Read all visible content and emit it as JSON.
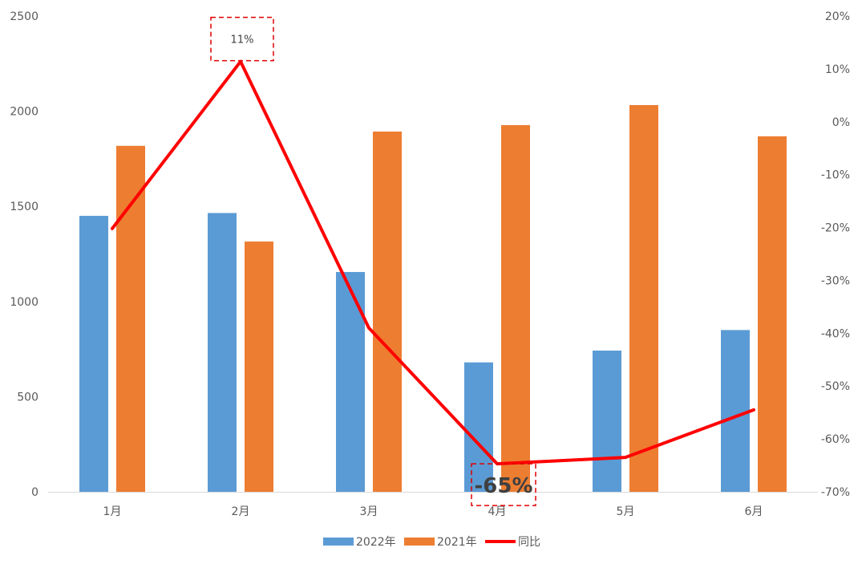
{
  "chart_data": {
    "type": "bar",
    "categories": [
      "1月",
      "2月",
      "3月",
      "4月",
      "5月",
      "6月"
    ],
    "series": [
      {
        "name": "2022年",
        "type": "bar",
        "axis": "left",
        "color": "#5B9BD5",
        "values": [
          1450,
          1465,
          1155,
          680,
          742,
          850
        ]
      },
      {
        "name": "2021年",
        "type": "bar",
        "axis": "left",
        "color": "#ED7D31",
        "values": [
          1818,
          1315,
          1893,
          1927,
          2032,
          1868
        ]
      },
      {
        "name": "同比",
        "type": "line",
        "axis": "right",
        "color": "#FF0000",
        "values": [
          -20.2,
          11.4,
          -39.0,
          -64.7,
          -63.5,
          -54.5
        ]
      }
    ],
    "left_axis": {
      "min": 0,
      "max": 2500,
      "step": 500,
      "tick_labels": [
        "0",
        "500",
        "1000",
        "1500",
        "2000",
        "2500"
      ]
    },
    "right_axis": {
      "min": -70,
      "max": 20,
      "step": 10,
      "tick_labels": [
        "-70%",
        "-60%",
        "-50%",
        "-40%",
        "-30%",
        "-20%",
        "-10%",
        "0%",
        "10%",
        "20%"
      ]
    },
    "annotations": [
      {
        "category": "2月",
        "series": "同比",
        "label": "11%",
        "style": "small"
      },
      {
        "category": "4月",
        "series": "同比",
        "label": "-65%",
        "style": "big"
      }
    ],
    "legend": {
      "position": "bottom",
      "items": [
        {
          "label": "2022年"
        },
        {
          "label": "2021年"
        },
        {
          "label": "同比"
        }
      ]
    },
    "grid": false
  }
}
